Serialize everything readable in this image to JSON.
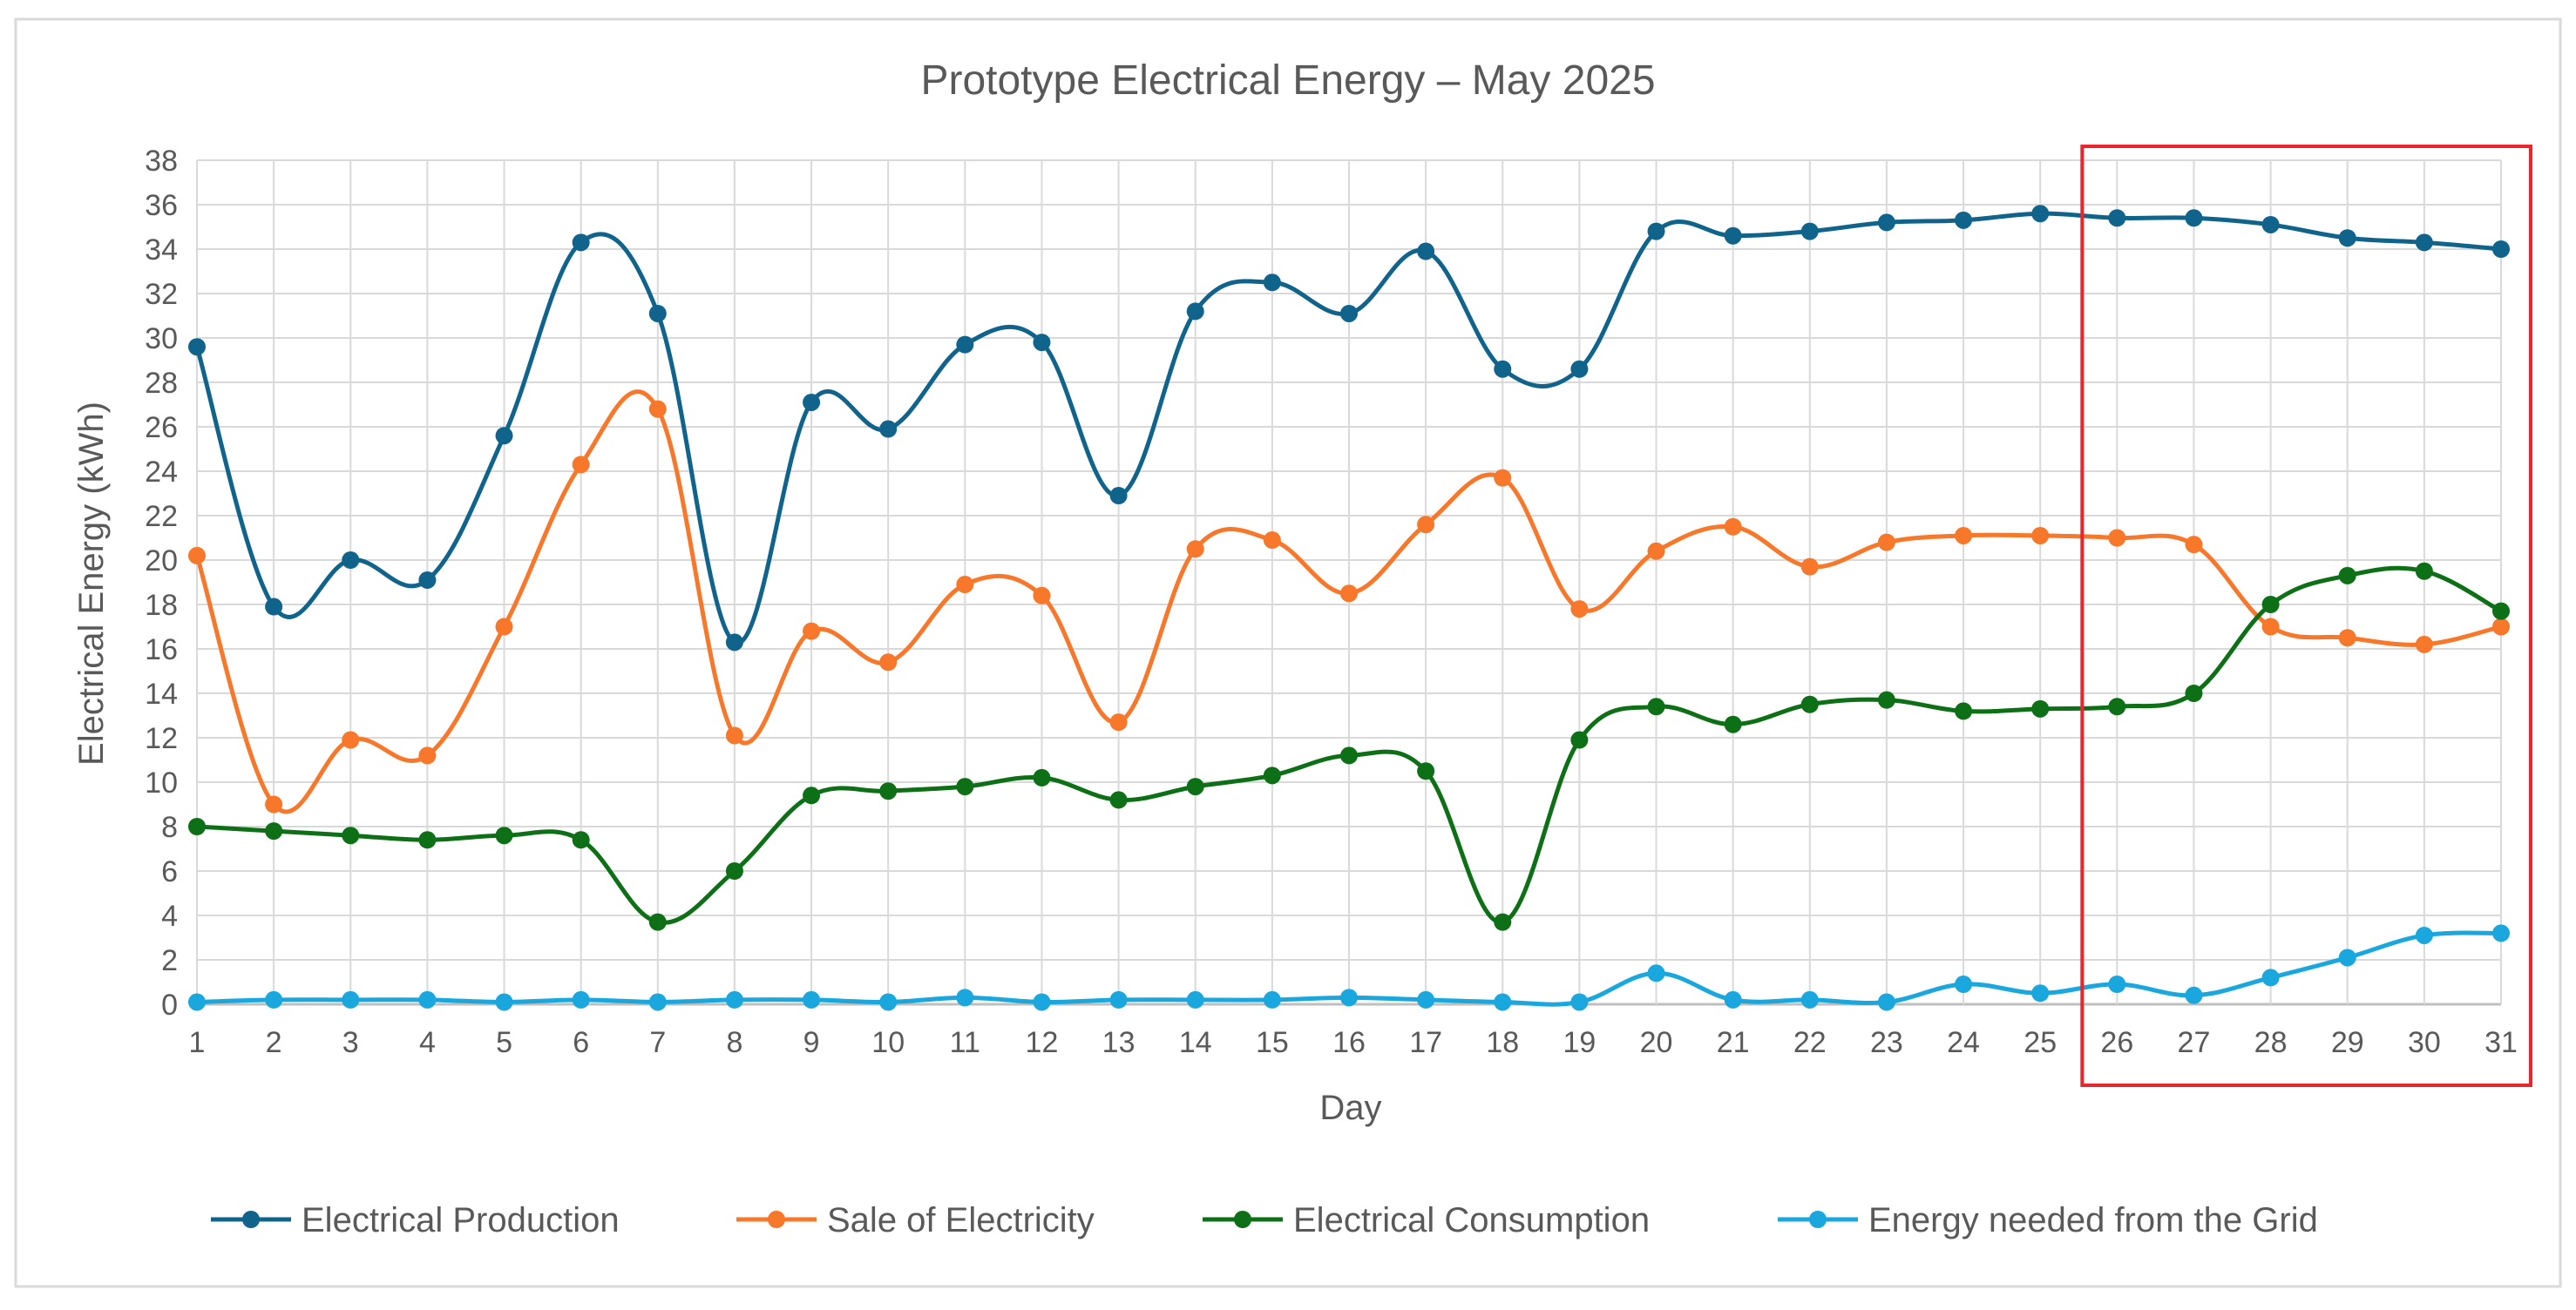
{
  "chart_data": {
    "type": "line",
    "title": "Prototype Electrical Energy – May 2025",
    "xlabel": "Day",
    "ylabel": "Electrical Energy (kWh)",
    "ylim": [
      0,
      38
    ],
    "ytick_step": 2,
    "grid": true,
    "smooth": true,
    "legend_position": "bottom",
    "x": [
      1,
      2,
      3,
      4,
      5,
      6,
      7,
      8,
      9,
      10,
      11,
      12,
      13,
      14,
      15,
      16,
      17,
      18,
      19,
      20,
      21,
      22,
      23,
      24,
      25,
      26,
      27,
      28,
      29,
      30,
      31
    ],
    "series": [
      {
        "name": "Electrical Production",
        "color": "#10648c",
        "values": [
          29.6,
          17.9,
          20.0,
          19.1,
          25.6,
          34.3,
          31.1,
          16.3,
          27.1,
          25.9,
          29.7,
          29.8,
          22.9,
          31.2,
          32.5,
          31.1,
          33.9,
          28.6,
          28.6,
          34.8,
          34.6,
          34.8,
          35.2,
          35.3,
          35.6,
          35.4,
          35.4,
          35.1,
          34.5,
          34.3,
          34.0
        ]
      },
      {
        "name": "Sale of Electricity",
        "color": "#f7772b",
        "values": [
          20.2,
          9.0,
          11.9,
          11.2,
          17.0,
          24.3,
          26.8,
          12.1,
          16.8,
          15.4,
          18.9,
          18.4,
          12.7,
          20.5,
          20.9,
          18.5,
          21.6,
          23.7,
          17.8,
          20.4,
          21.5,
          19.7,
          20.8,
          21.1,
          21.1,
          21.0,
          20.7,
          17.0,
          16.5,
          16.2,
          17.0
        ]
      },
      {
        "name": "Electrical Consumption",
        "color": "#0e7016",
        "values": [
          8.0,
          7.8,
          7.6,
          7.4,
          7.6,
          7.4,
          3.7,
          6.0,
          9.4,
          9.6,
          9.8,
          10.2,
          9.2,
          9.8,
          10.3,
          11.2,
          10.5,
          3.7,
          11.9,
          13.4,
          12.6,
          13.5,
          13.7,
          13.2,
          13.3,
          13.4,
          14.0,
          18.0,
          19.3,
          19.5,
          17.7
        ]
      },
      {
        "name": "Energy needed from the Grid",
        "color": "#1aa7dd",
        "values": [
          0.1,
          0.2,
          0.2,
          0.2,
          0.1,
          0.2,
          0.1,
          0.2,
          0.2,
          0.1,
          0.3,
          0.1,
          0.2,
          0.2,
          0.2,
          0.3,
          0.2,
          0.1,
          0.1,
          1.4,
          0.2,
          0.2,
          0.1,
          0.9,
          0.5,
          0.9,
          0.4,
          1.2,
          2.1,
          3.1,
          3.2
        ]
      }
    ],
    "highlight": {
      "from_day": 26,
      "to_day": 31,
      "color": "#e8262c"
    }
  }
}
